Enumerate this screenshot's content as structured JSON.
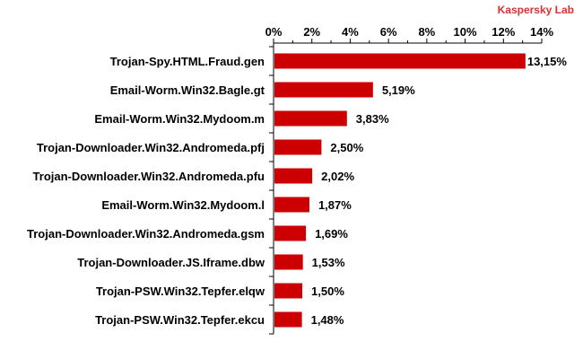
{
  "brand": {
    "text": "Kaspersky Lab",
    "color": "#e03030"
  },
  "colors": {
    "bar": "#cc0000",
    "axis": "#000000",
    "text": "#000000"
  },
  "chart_data": {
    "type": "bar",
    "orientation": "horizontal",
    "title": "",
    "xlabel": "",
    "ylabel": "",
    "xlim": [
      0,
      14
    ],
    "x_ticks": [
      0,
      2,
      4,
      6,
      8,
      10,
      12,
      14
    ],
    "x_tick_labels": [
      "0%",
      "2%",
      "4%",
      "6%",
      "8%",
      "10%",
      "12%",
      "14%"
    ],
    "x_axis_position": "top",
    "grid": false,
    "legend": "none",
    "categories": [
      "Trojan-Spy.HTML.Fraud.gen",
      "Email-Worm.Win32.Bagle.gt",
      "Email-Worm.Win32.Mydoom.m",
      "Trojan-Downloader.Win32.Andromeda.pfj",
      "Trojan-Downloader.Win32.Andromeda.pfu",
      "Email-Worm.Win32.Mydoom.l",
      "Trojan-Downloader.Win32.Andromeda.gsm",
      "Trojan-Downloader.JS.Iframe.dbw",
      "Trojan-PSW.Win32.Tepfer.elqw",
      "Trojan-PSW.Win32.Tepfer.ekcu"
    ],
    "values": [
      13.15,
      5.19,
      3.83,
      2.5,
      2.02,
      1.87,
      1.69,
      1.53,
      1.5,
      1.48
    ],
    "value_labels": [
      "13,15%",
      "5,19%",
      "3,83%",
      "2,50%",
      "2,02%",
      "1,87%",
      "1,69%",
      "1,53%",
      "1,50%",
      "1,48%"
    ]
  }
}
